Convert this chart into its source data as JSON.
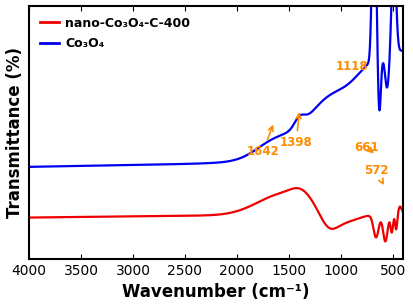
{
  "xlabel": "Wavenumber (cm⁻¹)",
  "ylabel": "Transmittance (%)",
  "xlim": [
    4000,
    400
  ],
  "annotation_color": "#FF8C00",
  "blue_color": "#0000EE",
  "red_color": "#EE0000",
  "legend_labels": [
    "nano-Co₃O₄-C-400",
    "Co₃O₄"
  ],
  "background_color": "#ffffff",
  "tick_label_fontsize": 10,
  "axis_label_fontsize": 12
}
